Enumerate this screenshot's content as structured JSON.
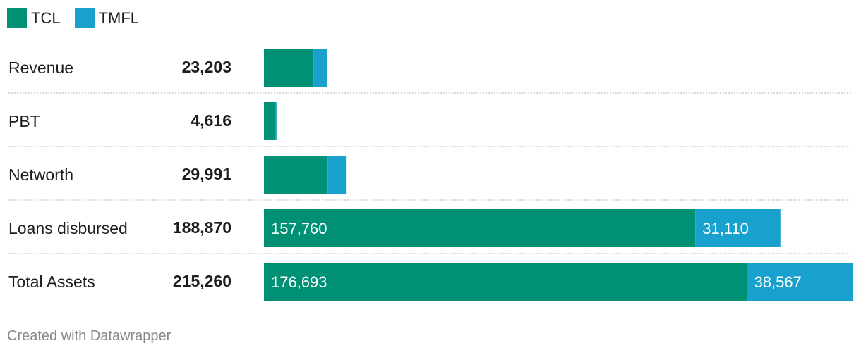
{
  "colors": {
    "tcl": "#009175",
    "tmfl": "#18a1cd",
    "divider": "#cccccc"
  },
  "legend": [
    {
      "key": "tcl",
      "label": "TCL"
    },
    {
      "key": "tmfl",
      "label": "TMFL"
    }
  ],
  "chart_data": {
    "type": "bar",
    "orientation": "horizontal",
    "stacked": true,
    "categories": [
      "Revenue",
      "PBT",
      "Networth",
      "Loans disbursed",
      "Total Assets"
    ],
    "totals": [
      "23,203",
      "4,616",
      "29,991",
      "188,870",
      "215,260"
    ],
    "series": [
      {
        "name": "TCL",
        "values": [
          18100,
          4300,
          23300,
          157760,
          176693
        ],
        "labels": [
          "",
          "",
          "",
          "157,760",
          "176,693"
        ]
      },
      {
        "name": "TMFL",
        "values": [
          5103,
          316,
          6691,
          31110,
          38567
        ],
        "labels": [
          "",
          "",
          "",
          "31,110",
          "38,567"
        ]
      }
    ],
    "xlim": [
      0,
      215260
    ],
    "legend_position": "top-left"
  },
  "footer": {
    "credit": "Created with Datawrapper"
  }
}
